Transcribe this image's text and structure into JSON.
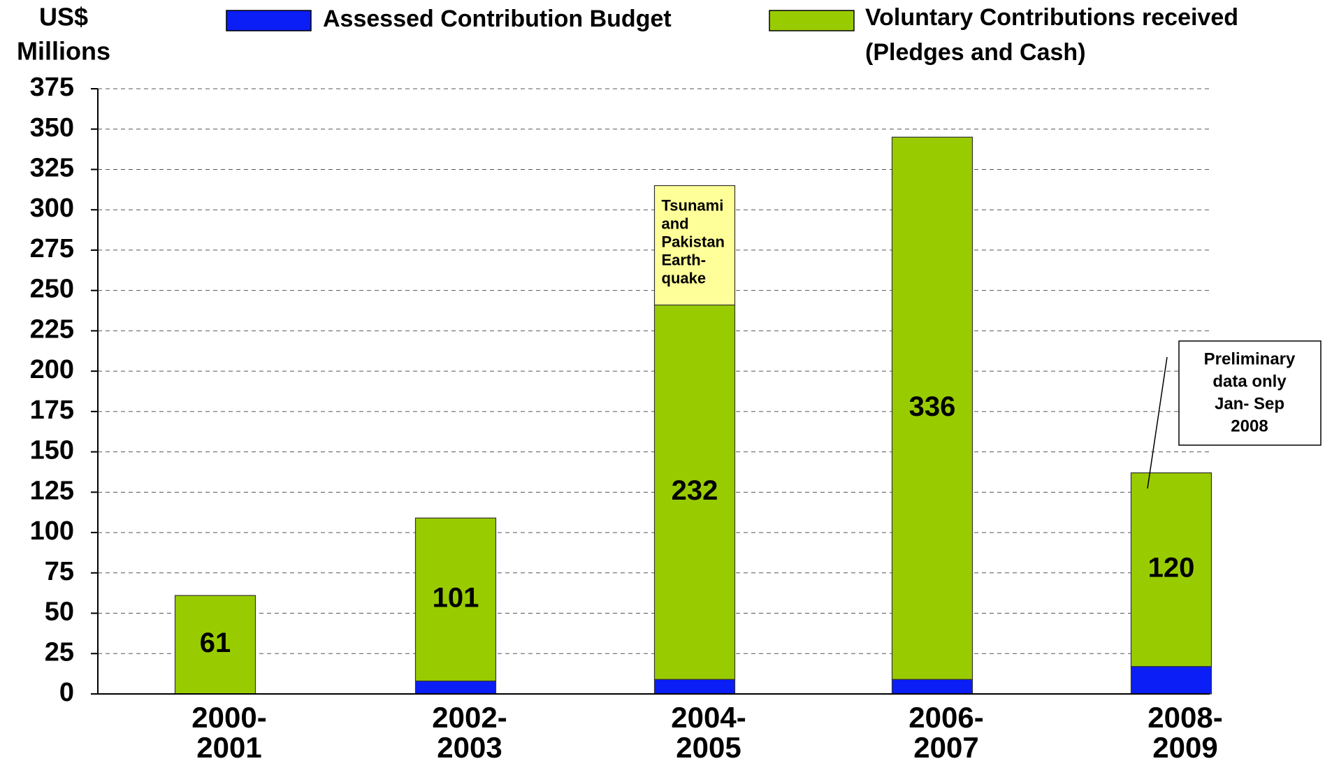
{
  "chart_data": {
    "type": "stacked_bar",
    "y_label_lines": [
      "US$",
      "Millions"
    ],
    "categories": [
      [
        "2000-",
        "2001"
      ],
      [
        "2002-",
        "2003"
      ],
      [
        "2004-",
        "2005"
      ],
      [
        "2006-",
        "2007"
      ],
      [
        "2008-",
        "2009"
      ]
    ],
    "series": [
      {
        "name": [
          "Assessed Contribution Budget"
        ],
        "color": "#0a1ef5",
        "values": [
          0,
          8,
          9,
          9,
          17
        ],
        "legend": true,
        "show_values": false
      },
      {
        "name": [
          "Voluntary Contributions received",
          "(Pledges and Cash)"
        ],
        "color": "#99cc00",
        "values": [
          61,
          101,
          232,
          336,
          120
        ],
        "legend": true,
        "show_values": true
      },
      {
        "name": [
          "Tsunami",
          "and",
          "Pakistan",
          "Earth-",
          "quake"
        ],
        "color": "#ffff99",
        "values": [
          null,
          null,
          74,
          null,
          null
        ],
        "legend": false,
        "show_values": false
      }
    ],
    "ylim": [
      0,
      375
    ],
    "yticks": [
      0,
      25,
      50,
      75,
      100,
      125,
      150,
      175,
      200,
      225,
      250,
      275,
      300,
      325,
      350,
      375
    ],
    "grid": true,
    "annotation": {
      "lines": [
        "Preliminary",
        "data only",
        "Jan- Sep",
        "2008"
      ],
      "category": 4
    }
  }
}
